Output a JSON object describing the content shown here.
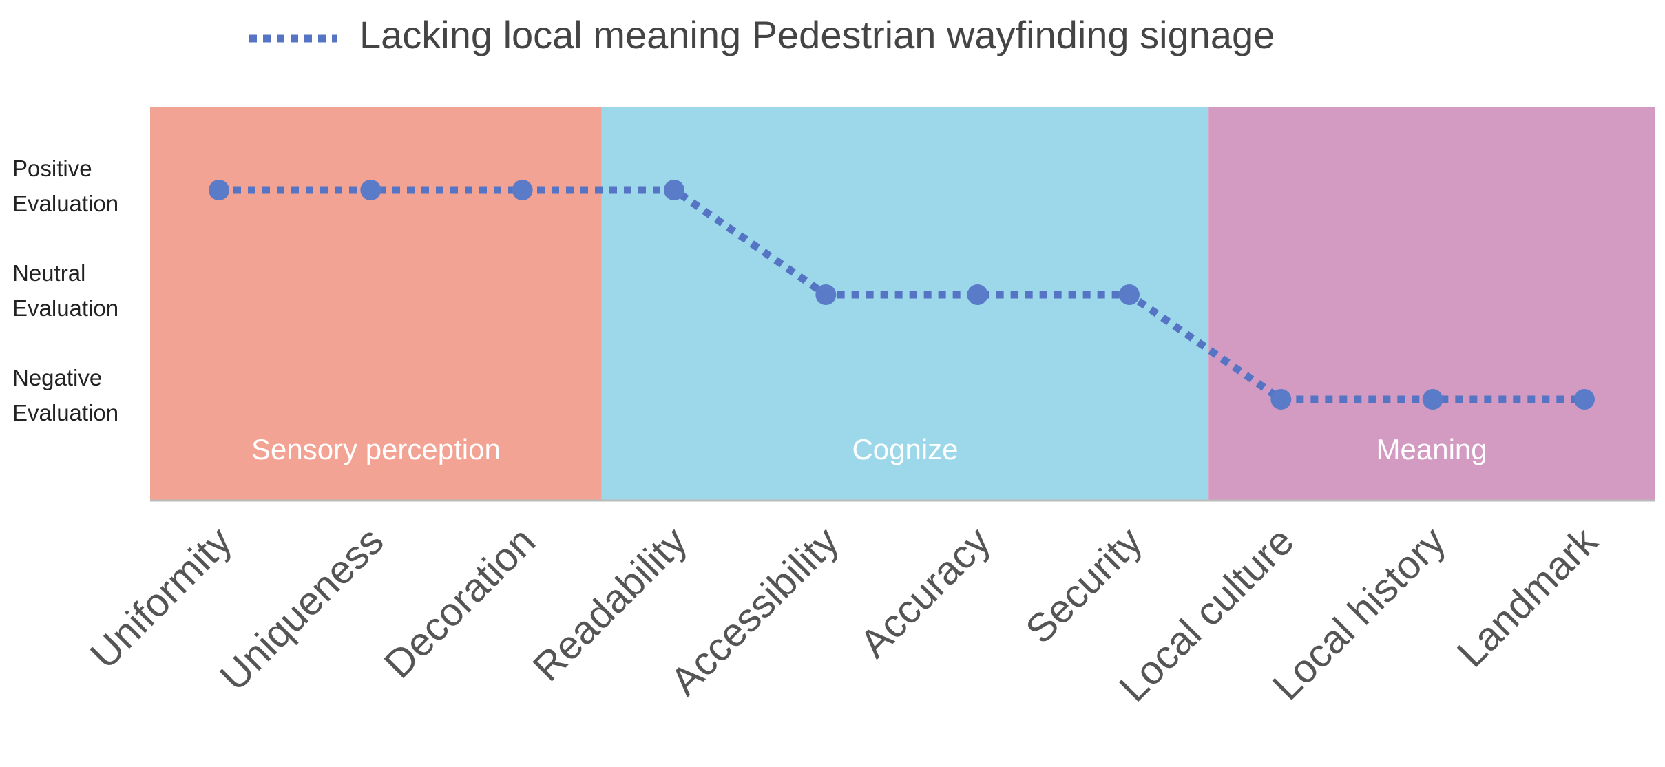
{
  "chart_data": {
    "type": "line",
    "title": "",
    "legend": {
      "label": "Lacking local meaning Pedestrian wayfinding signage",
      "position": "top-center",
      "line_style": "dotted"
    },
    "categories": [
      "Uniformity",
      "Uniqueness",
      "Decoration",
      "Readability",
      "Accessibility",
      "Accuracy",
      "Security",
      "Local culture",
      "Local history",
      "Landmark"
    ],
    "series": [
      {
        "name": "Lacking local meaning Pedestrian wayfinding signage",
        "values": [
          3,
          3,
          3,
          3,
          2,
          2,
          2,
          1,
          1,
          1
        ]
      }
    ],
    "y_levels": [
      {
        "value": 3,
        "lines": [
          "Positive",
          "Evaluation"
        ]
      },
      {
        "value": 2,
        "lines": [
          "Neutral",
          "Evaluation"
        ]
      },
      {
        "value": 1,
        "lines": [
          "Negative",
          "Evaluation"
        ]
      }
    ],
    "regions": [
      {
        "label": "Sensory perception",
        "color": "#F2A393",
        "label_color": "#FFFFFF"
      },
      {
        "label": "Cognize",
        "color": "#9DD8EA",
        "label_color": "#FFFFFF"
      },
      {
        "label": "Meaning",
        "color": "#D49BC2",
        "label_color": "#FFFFFF"
      }
    ],
    "colors": {
      "marker": "#5A7BC8",
      "line": "#5575C4",
      "axis": "#BBBBBB",
      "axis_text": "#555555"
    },
    "xlabel": "",
    "ylabel": "",
    "ylim": [
      0,
      3.8
    ],
    "grid": false
  }
}
